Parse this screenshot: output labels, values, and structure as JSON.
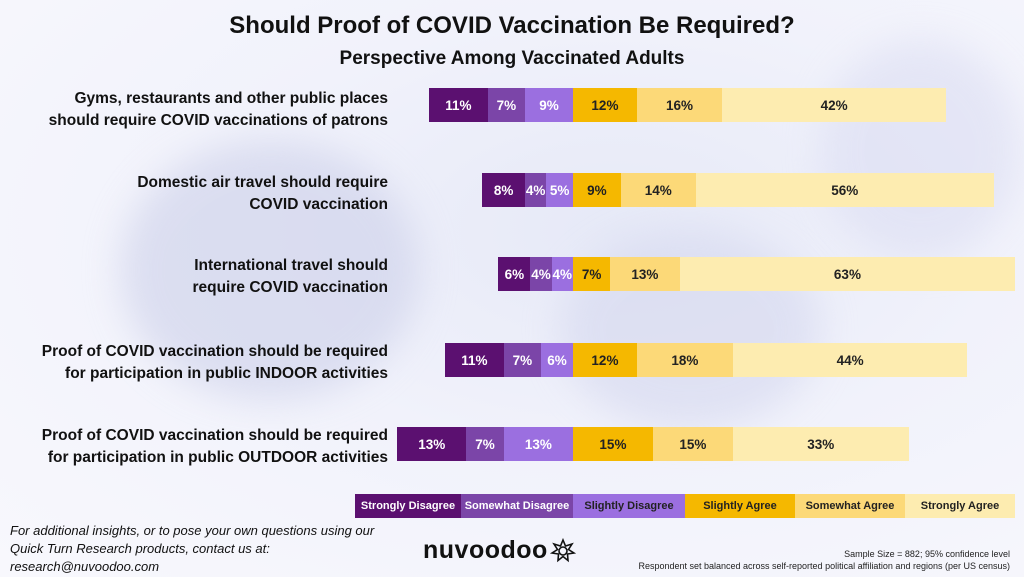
{
  "title": "Should Proof of COVID Vaccination Be Required?",
  "subtitle": "Perspective Among Vaccinated Adults",
  "colors": {
    "strongly_disagree": "#5b1070",
    "somewhat_disagree": "#7b45a8",
    "slightly_disagree": "#9b6fe0",
    "slightly_agree": "#f5b800",
    "somewhat_agree": "#fcd978",
    "strongly_agree": "#fdecb0"
  },
  "chart_data": {
    "type": "bar",
    "orientation": "horizontal-stacked-diverging",
    "categories": [
      "Gyms, restaurants and other public places should require COVID vaccinations of patrons",
      "Domestic air travel should require COVID vaccination",
      "International travel should require COVID vaccination",
      "Proof of COVID vaccination should be required for participation in public INDOOR activities",
      "Proof of COVID vaccination should be required for participation in public OUTDOOR activities"
    ],
    "category_lines": [
      [
        "Gyms, restaurants and other public places",
        "should require COVID vaccinations of patrons"
      ],
      [
        "Domestic air travel should require",
        "COVID vaccination"
      ],
      [
        "International travel should",
        "require COVID vaccination"
      ],
      [
        "Proof of COVID vaccination should be required",
        "for participation in public INDOOR activities"
      ],
      [
        "Proof of COVID vaccination should be required",
        "for participation in public OUTDOOR activities"
      ]
    ],
    "series": [
      {
        "name": "Strongly Disagree",
        "values": [
          11,
          8,
          6,
          11,
          13
        ]
      },
      {
        "name": "Somewhat Disagree",
        "values": [
          7,
          4,
          4,
          7,
          7
        ]
      },
      {
        "name": "Slightly Disagree",
        "values": [
          9,
          5,
          4,
          6,
          13
        ]
      },
      {
        "name": "Slightly Agree",
        "values": [
          12,
          9,
          7,
          12,
          15
        ]
      },
      {
        "name": "Somewhat Agree",
        "values": [
          16,
          14,
          13,
          18,
          15
        ]
      },
      {
        "name": "Strongly Agree",
        "values": [
          42,
          56,
          63,
          44,
          33
        ]
      }
    ],
    "unit": "%",
    "legend_position": "bottom",
    "grid": false
  },
  "footer": {
    "contact_lines": [
      "For additional insights, or to pose your own questions using our",
      "Quick Turn Research products, contact us at:",
      "research@nuvoodoo.com"
    ],
    "logo_text": "nuvoodoo",
    "sample_note": "Sample Size = 882; 95% confidence level",
    "balance_note": "Respondent set balanced across self-reported political affiliation and regions (per US census)"
  }
}
